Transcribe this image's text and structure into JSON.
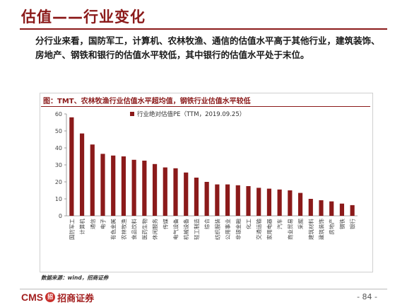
{
  "title": "估值——行业变化",
  "summary": "分行业来看，国防军工，计算机、农林牧渔、通信的估值水平高于其他行业，建筑装饰、房地产、钢铁和银行的估值水平较低，其中银行的估值水平处于末位。",
  "chart_caption": "图：TMT、农林牧渔行业估值水平超均值，钢铁行业估值水平较低",
  "source": "数据来源：wind，招商证券",
  "logo": {
    "cms": "CMS",
    "mark": "招",
    "cn": "招商证券"
  },
  "page_number": "- 84 -",
  "colors": {
    "bar": "#8b1a1a",
    "accent": "#8b1a1a"
  },
  "chart_data": {
    "type": "bar",
    "title": "",
    "xlabel": "",
    "ylabel": "",
    "ylim": [
      0,
      60
    ],
    "yticks": [
      0,
      10,
      20,
      30,
      40,
      50,
      60
    ],
    "grid": false,
    "legend_position": "top-center",
    "series": [
      {
        "name": "行业绝对估值PE（TTM，2019.09.25）",
        "values": [
          58.0,
          48.5,
          42.0,
          36.5,
          35.5,
          35.0,
          33.0,
          32.5,
          30.5,
          28.5,
          28.0,
          25.5,
          22.5,
          20.0,
          18.5,
          18.5,
          18.0,
          17.5,
          16.5,
          16.0,
          15.5,
          15.0,
          13.5,
          10.0,
          9.2,
          8.5,
          7.2,
          6.3
        ]
      }
    ],
    "categories": [
      "国防军工",
      "计算机",
      "通信",
      "电子",
      "有色金属",
      "农林牧渔",
      "食品饮料",
      "医药生物",
      "休闲服务",
      "传媒",
      "电气设备",
      "机械设备",
      "轻工制造",
      "综合",
      "纺织服装",
      "公用事业",
      "非银金融",
      "化工",
      "交通运输",
      "家用电器",
      "汽车",
      "商业贸易",
      "采掘",
      "建筑材料",
      "建筑装饰",
      "房地产",
      "钢铁",
      "银行"
    ]
  }
}
